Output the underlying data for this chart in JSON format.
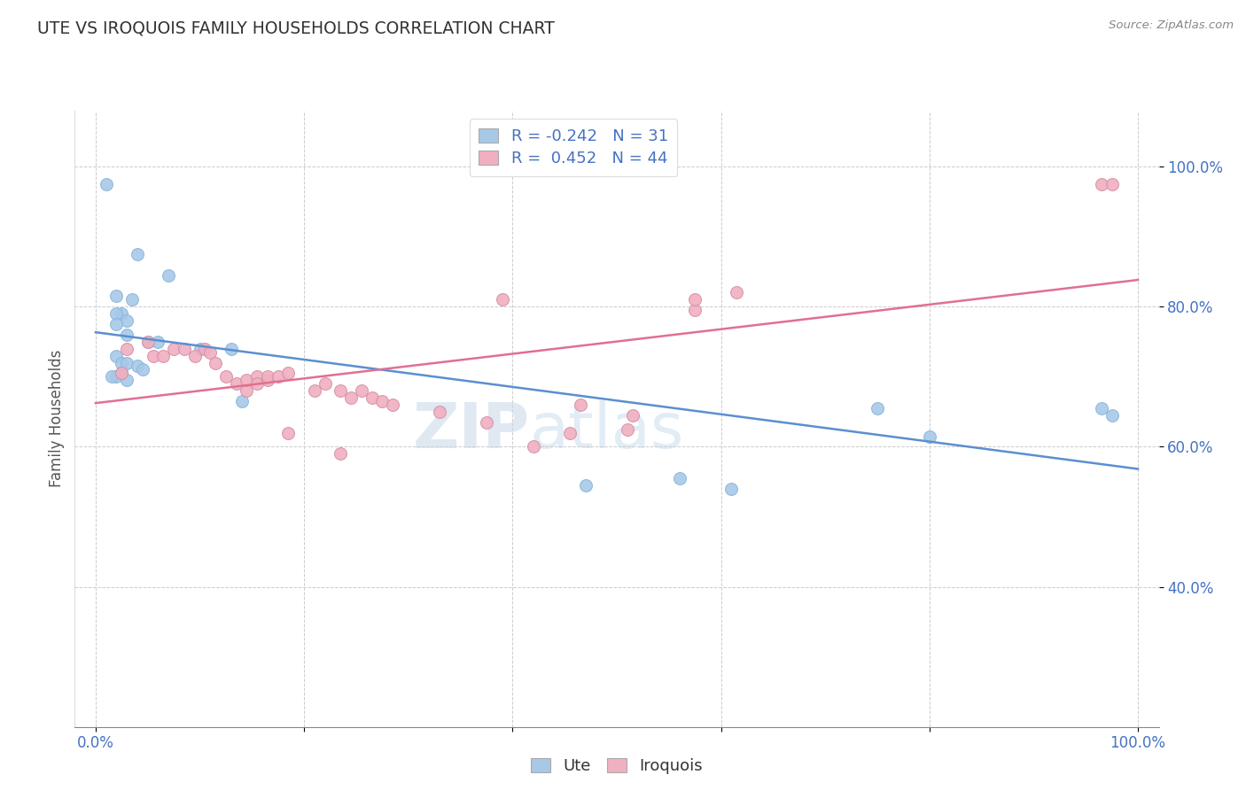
{
  "title": "UTE VS IROQUOIS FAMILY HOUSEHOLDS CORRELATION CHART",
  "source": "Source: ZipAtlas.com",
  "ylabel": "Family Households",
  "ute_label": "Ute",
  "iroquois_label": "Iroquois",
  "ute_R": -0.242,
  "ute_N": 31,
  "iroquois_R": 0.452,
  "iroquois_N": 44,
  "ute_color": "#A8C8E8",
  "iroquois_color": "#F0B0C0",
  "ute_line_color": "#5B8FD0",
  "iroquois_line_color": "#E07090",
  "xlim": [
    -0.02,
    1.02
  ],
  "ylim": [
    0.2,
    1.08
  ],
  "yticks": [
    0.4,
    0.6,
    0.8,
    1.0
  ],
  "ytick_labels": [
    "40.0%",
    "60.0%",
    "80.0%",
    "100.0%"
  ],
  "xticks": [
    0.0,
    0.2,
    0.4,
    0.6,
    0.8,
    1.0
  ],
  "xtick_labels": [
    "0.0%",
    "",
    "",
    "",
    "",
    "100.0%"
  ],
  "watermark_zip": "ZIP",
  "watermark_atlas": "atlas",
  "background_color": "#FFFFFF",
  "ute_x": [
    0.01,
    0.04,
    0.07,
    0.02,
    0.035,
    0.025,
    0.02,
    0.03,
    0.02,
    0.03,
    0.05,
    0.06,
    0.1,
    0.13,
    0.02,
    0.025,
    0.03,
    0.04,
    0.045,
    0.025,
    0.02,
    0.015,
    0.03,
    0.14,
    0.75,
    0.8,
    0.56,
    0.61,
    0.965,
    0.975,
    0.47
  ],
  "ute_y": [
    0.975,
    0.875,
    0.845,
    0.815,
    0.81,
    0.79,
    0.79,
    0.78,
    0.775,
    0.76,
    0.75,
    0.75,
    0.74,
    0.74,
    0.73,
    0.72,
    0.72,
    0.715,
    0.71,
    0.705,
    0.7,
    0.7,
    0.695,
    0.665,
    0.655,
    0.615,
    0.555,
    0.54,
    0.655,
    0.645,
    0.545
  ],
  "iroquois_x": [
    0.39,
    0.025,
    0.03,
    0.05,
    0.055,
    0.065,
    0.075,
    0.085,
    0.095,
    0.105,
    0.11,
    0.115,
    0.125,
    0.135,
    0.145,
    0.145,
    0.155,
    0.155,
    0.165,
    0.165,
    0.175,
    0.185,
    0.21,
    0.22,
    0.235,
    0.245,
    0.255,
    0.265,
    0.275,
    0.285,
    0.33,
    0.375,
    0.42,
    0.455,
    0.51,
    0.575,
    0.615,
    0.465,
    0.515,
    0.575,
    0.185,
    0.235,
    0.965,
    0.975
  ],
  "iroquois_y": [
    0.81,
    0.705,
    0.74,
    0.75,
    0.73,
    0.73,
    0.74,
    0.74,
    0.73,
    0.74,
    0.735,
    0.72,
    0.7,
    0.69,
    0.68,
    0.695,
    0.7,
    0.69,
    0.695,
    0.7,
    0.7,
    0.705,
    0.68,
    0.69,
    0.68,
    0.67,
    0.68,
    0.67,
    0.665,
    0.66,
    0.65,
    0.635,
    0.6,
    0.62,
    0.625,
    0.795,
    0.82,
    0.66,
    0.645,
    0.81,
    0.62,
    0.59,
    0.975,
    0.975
  ]
}
